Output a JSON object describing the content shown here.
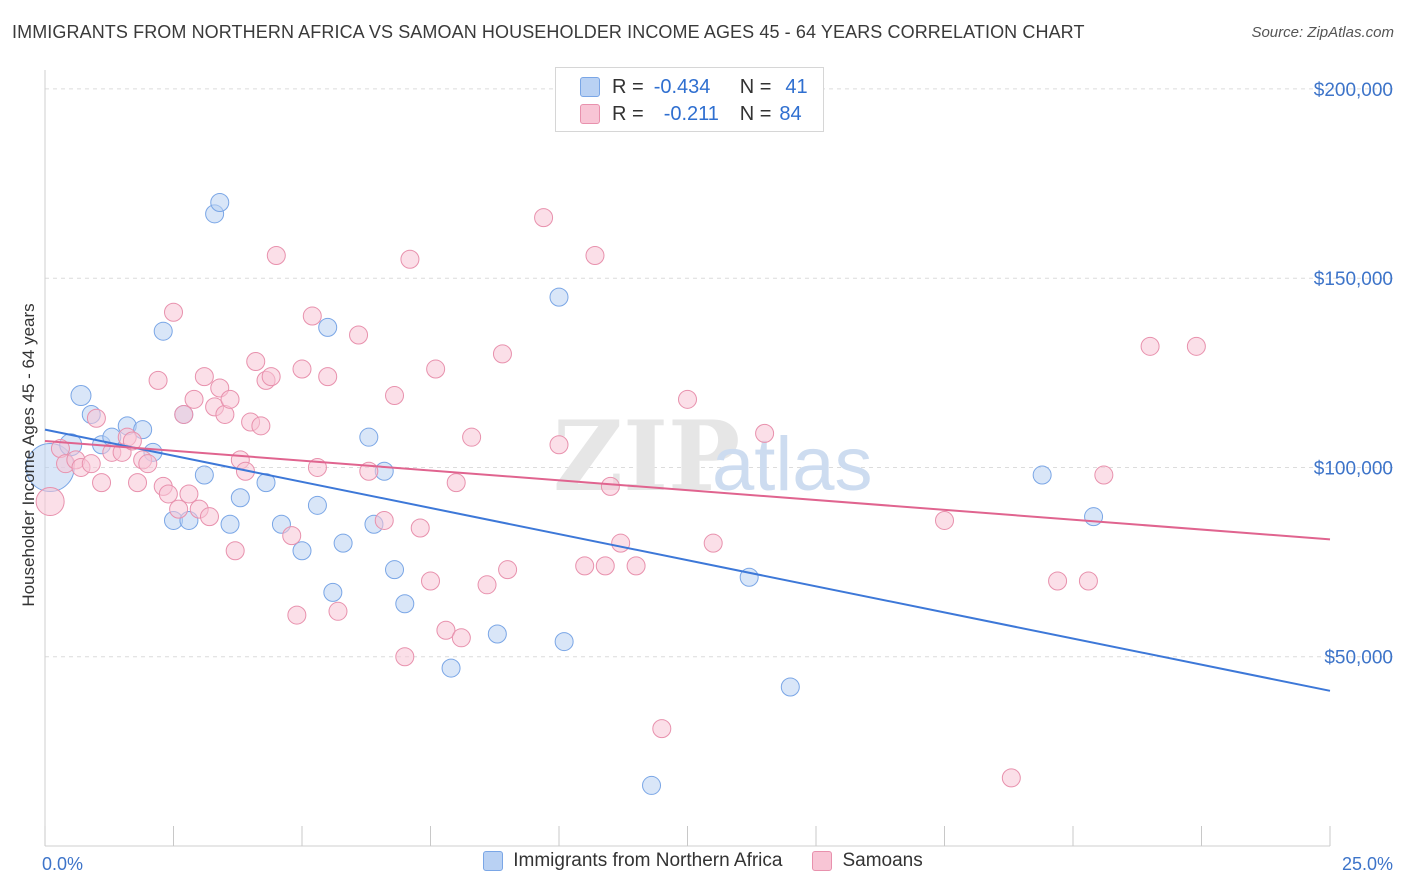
{
  "title": "IMMIGRANTS FROM NORTHERN AFRICA VS SAMOAN HOUSEHOLDER INCOME AGES 45 - 64 YEARS CORRELATION CHART",
  "source": "Source: ZipAtlas.com",
  "watermark": {
    "zip": "ZIP",
    "atlas": "atlas"
  },
  "legend": {
    "rows": [
      {
        "r_label": "R =",
        "r_value": "-0.434",
        "n_label": "N =",
        "n_value": "41",
        "color": "#7aa6e6",
        "fill": "#b9d1f3"
      },
      {
        "r_label": "R =",
        "r_value": "-0.211",
        "n_label": "N =",
        "n_value": "84",
        "color": "#e891ad",
        "fill": "#f8c5d5"
      }
    ]
  },
  "bottom_legend": [
    "Immigrants from Northern Africa",
    "Samoans"
  ],
  "chart_data": {
    "type": "scatter",
    "title": "IMMIGRANTS FROM NORTHERN AFRICA VS SAMOAN HOUSEHOLDER INCOME AGES 45 - 64 YEARS CORRELATION CHART",
    "xlabel": "",
    "ylabel": "Householder Income Ages 45 - 64 years",
    "xlim": [
      0,
      25
    ],
    "ylim": [
      0,
      205000
    ],
    "x_tick_labels": [
      "0.0%",
      "25.0%"
    ],
    "y_ticks": [
      50000,
      100000,
      150000,
      200000
    ],
    "y_tick_labels": [
      "$50,000",
      "$100,000",
      "$150,000",
      "$200,000"
    ],
    "grid": "horizontal dashed",
    "legend_position": "top-center",
    "series": [
      {
        "name": "Immigrants from Northern Africa",
        "color": "#3d78d8",
        "fill": "#b9d1f3",
        "stroke": "#7aa6e6",
        "trend": {
          "x": [
            0,
            25
          ],
          "y": [
            110000,
            41000
          ]
        },
        "points": [
          [
            0.1,
            100000,
            24
          ],
          [
            0.5,
            106000,
            11
          ],
          [
            0.7,
            119000,
            10
          ],
          [
            0.9,
            114000,
            9
          ],
          [
            1.1,
            106000,
            9
          ],
          [
            1.3,
            108000,
            9
          ],
          [
            1.6,
            111000,
            9
          ],
          [
            1.9,
            110000,
            9
          ],
          [
            2.1,
            104000,
            9
          ],
          [
            2.3,
            136000,
            9
          ],
          [
            2.5,
            86000,
            9
          ],
          [
            2.7,
            114000,
            9
          ],
          [
            2.8,
            86000,
            9
          ],
          [
            3.1,
            98000,
            9
          ],
          [
            3.3,
            167000,
            9
          ],
          [
            3.4,
            170000,
            9
          ],
          [
            3.6,
            85000,
            9
          ],
          [
            3.8,
            92000,
            9
          ],
          [
            4.3,
            96000,
            9
          ],
          [
            4.6,
            85000,
            9
          ],
          [
            5.0,
            78000,
            9
          ],
          [
            5.3,
            90000,
            9
          ],
          [
            5.5,
            137000,
            9
          ],
          [
            5.6,
            67000,
            9
          ],
          [
            5.8,
            80000,
            9
          ],
          [
            6.3,
            108000,
            9
          ],
          [
            6.4,
            85000,
            9
          ],
          [
            6.6,
            99000,
            9
          ],
          [
            6.8,
            73000,
            9
          ],
          [
            7.0,
            64000,
            9
          ],
          [
            7.9,
            47000,
            9
          ],
          [
            8.8,
            56000,
            9
          ],
          [
            10.0,
            145000,
            9
          ],
          [
            10.1,
            54000,
            9
          ],
          [
            11.8,
            16000,
            9
          ],
          [
            13.7,
            71000,
            9
          ],
          [
            14.5,
            42000,
            9
          ],
          [
            19.4,
            98000,
            9
          ],
          [
            20.4,
            87000,
            9
          ]
        ]
      },
      {
        "name": "Samoans",
        "color": "#e0648f",
        "fill": "#f8c5d5",
        "stroke": "#e891ad",
        "trend": {
          "x": [
            0,
            25
          ],
          "y": [
            107000,
            81000
          ]
        },
        "points": [
          [
            0.1,
            91000,
            14
          ],
          [
            0.3,
            105000,
            9
          ],
          [
            0.4,
            101000,
            9
          ],
          [
            0.6,
            102000,
            9
          ],
          [
            0.7,
            100000,
            9
          ],
          [
            0.9,
            101000,
            9
          ],
          [
            1.0,
            113000,
            9
          ],
          [
            1.1,
            96000,
            9
          ],
          [
            1.3,
            104000,
            9
          ],
          [
            1.5,
            104000,
            9
          ],
          [
            1.6,
            108000,
            9
          ],
          [
            1.7,
            107000,
            9
          ],
          [
            1.8,
            96000,
            9
          ],
          [
            1.9,
            102000,
            9
          ],
          [
            2.0,
            101000,
            9
          ],
          [
            2.2,
            123000,
            9
          ],
          [
            2.3,
            95000,
            9
          ],
          [
            2.4,
            93000,
            9
          ],
          [
            2.5,
            141000,
            9
          ],
          [
            2.6,
            89000,
            9
          ],
          [
            2.7,
            114000,
            9
          ],
          [
            2.8,
            93000,
            9
          ],
          [
            2.9,
            118000,
            9
          ],
          [
            3.0,
            89000,
            9
          ],
          [
            3.1,
            124000,
            9
          ],
          [
            3.2,
            87000,
            9
          ],
          [
            3.3,
            116000,
            9
          ],
          [
            3.4,
            121000,
            9
          ],
          [
            3.5,
            114000,
            9
          ],
          [
            3.6,
            118000,
            9
          ],
          [
            3.7,
            78000,
            9
          ],
          [
            3.8,
            102000,
            9
          ],
          [
            3.9,
            99000,
            9
          ],
          [
            4.0,
            112000,
            9
          ],
          [
            4.1,
            128000,
            9
          ],
          [
            4.2,
            111000,
            9
          ],
          [
            4.3,
            123000,
            9
          ],
          [
            4.4,
            124000,
            9
          ],
          [
            4.5,
            156000,
            9
          ],
          [
            4.8,
            82000,
            9
          ],
          [
            4.9,
            61000,
            9
          ],
          [
            5.0,
            126000,
            9
          ],
          [
            5.2,
            140000,
            9
          ],
          [
            5.3,
            100000,
            9
          ],
          [
            5.5,
            124000,
            9
          ],
          [
            5.7,
            62000,
            9
          ],
          [
            6.1,
            135000,
            9
          ],
          [
            6.3,
            99000,
            9
          ],
          [
            6.6,
            86000,
            9
          ],
          [
            6.8,
            119000,
            9
          ],
          [
            7.0,
            50000,
            9
          ],
          [
            7.1,
            155000,
            9
          ],
          [
            7.3,
            84000,
            9
          ],
          [
            7.5,
            70000,
            9
          ],
          [
            7.6,
            126000,
            9
          ],
          [
            7.8,
            57000,
            9
          ],
          [
            8.0,
            96000,
            9
          ],
          [
            8.1,
            55000,
            9
          ],
          [
            8.3,
            108000,
            9
          ],
          [
            8.6,
            69000,
            9
          ],
          [
            8.9,
            130000,
            9
          ],
          [
            9.0,
            73000,
            9
          ],
          [
            9.7,
            166000,
            9
          ],
          [
            10.0,
            106000,
            9
          ],
          [
            10.5,
            74000,
            9
          ],
          [
            10.7,
            156000,
            9
          ],
          [
            10.9,
            74000,
            9
          ],
          [
            11.0,
            95000,
            9
          ],
          [
            11.2,
            80000,
            9
          ],
          [
            11.5,
            74000,
            9
          ],
          [
            12.0,
            31000,
            9
          ],
          [
            12.5,
            118000,
            9
          ],
          [
            13.0,
            80000,
            9
          ],
          [
            14.0,
            109000,
            9
          ],
          [
            17.5,
            86000,
            9
          ],
          [
            18.8,
            18000,
            9
          ],
          [
            19.7,
            70000,
            9
          ],
          [
            20.3,
            70000,
            9
          ],
          [
            20.6,
            98000,
            9
          ],
          [
            21.5,
            132000,
            9
          ],
          [
            22.4,
            132000,
            9
          ]
        ]
      }
    ]
  }
}
